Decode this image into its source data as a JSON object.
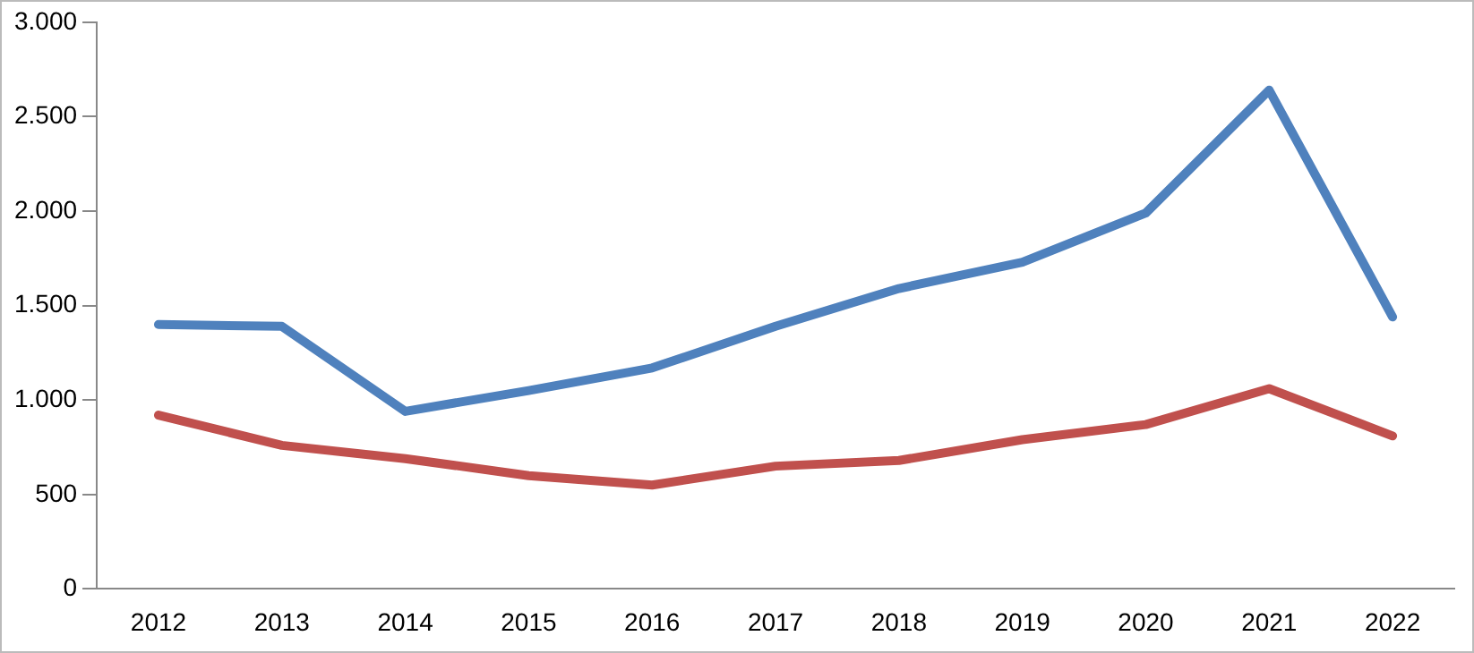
{
  "chart_data": {
    "type": "line",
    "categories": [
      "2012",
      "2013",
      "2014",
      "2015",
      "2016",
      "2017",
      "2018",
      "2019",
      "2020",
      "2021",
      "2022"
    ],
    "series": [
      {
        "color": "#4f81bd",
        "values": [
          1400,
          1390,
          940,
          1050,
          1170,
          1390,
          1590,
          1730,
          1990,
          2640,
          1440
        ]
      },
      {
        "color": "#c0504d",
        "values": [
          920,
          760,
          690,
          600,
          550,
          650,
          680,
          790,
          870,
          1060,
          810
        ]
      }
    ],
    "ylim": [
      0,
      3000
    ],
    "yticks": [
      {
        "value": 0,
        "label": "0"
      },
      {
        "value": 500,
        "label": "500"
      },
      {
        "value": 1000,
        "label": "1.000"
      },
      {
        "value": 1500,
        "label": "1.500"
      },
      {
        "value": 2000,
        "label": "2.000"
      },
      {
        "value": 2500,
        "label": "2.500"
      },
      {
        "value": 3000,
        "label": "3.000"
      }
    ],
    "grid": false,
    "legend": false,
    "marker": "none",
    "line_style": "solid"
  }
}
